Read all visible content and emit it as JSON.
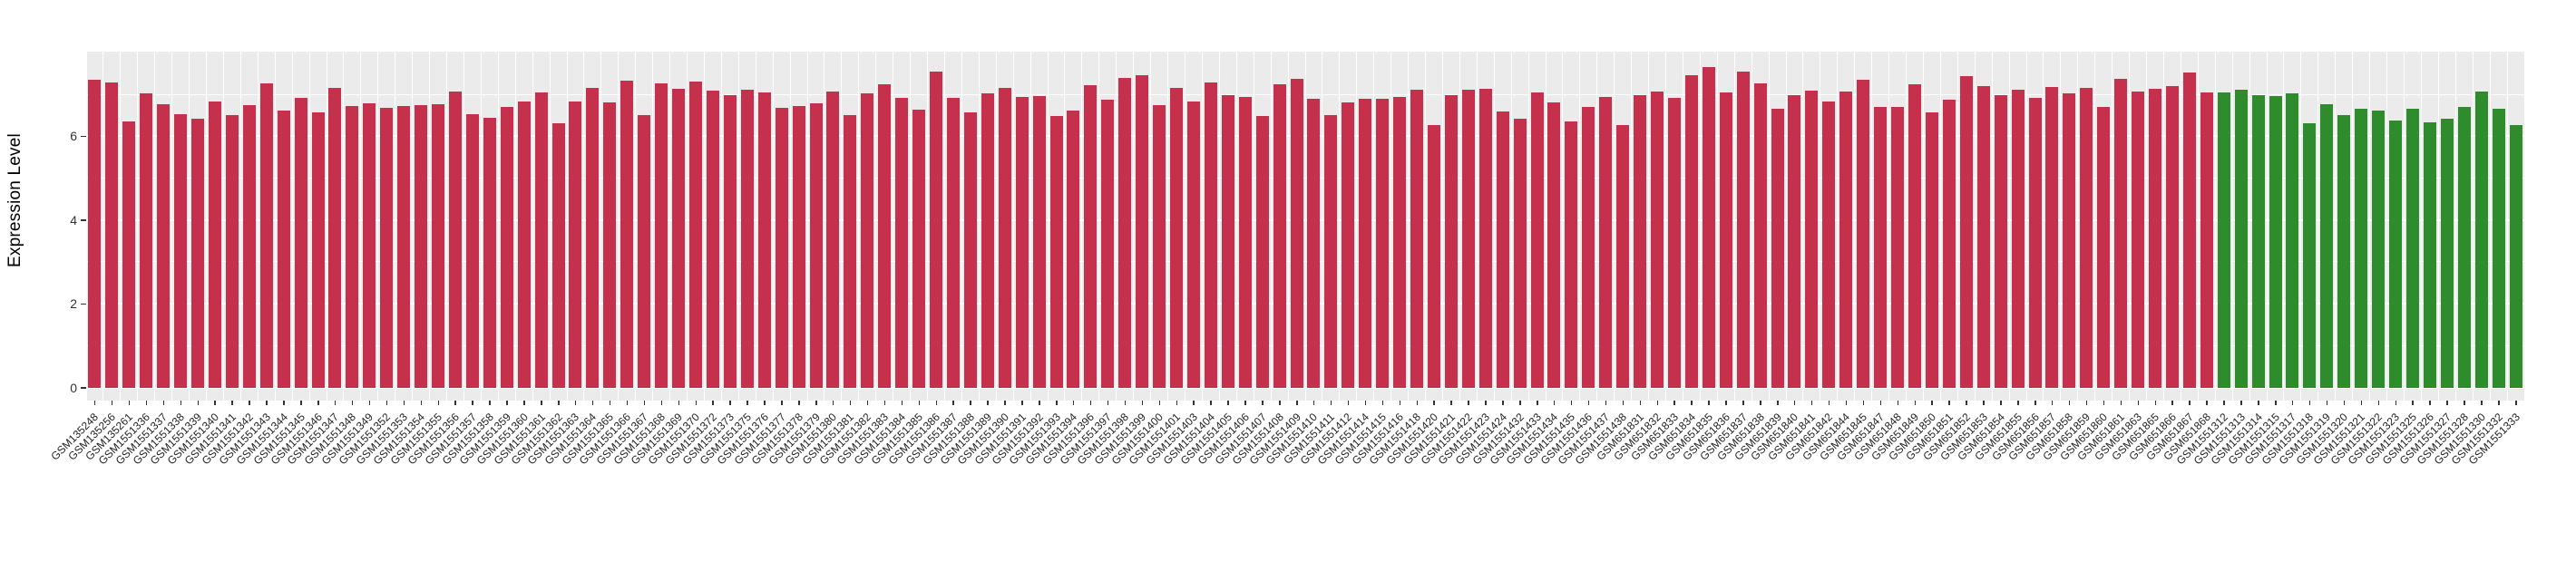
{
  "chart_data": {
    "type": "bar",
    "title": "",
    "xlabel": "",
    "ylabel": "Expression Level",
    "yticks": [
      0,
      2,
      4,
      6
    ],
    "ylim": [
      0,
      8.0
    ],
    "grid": "on",
    "legend": "none",
    "panel_background": "#EBEBEB",
    "gridline_color": "#FFFFFF",
    "group_colors": {
      "red": "#C5304D",
      "green": "#2E8C2D"
    },
    "green_start_index": 124,
    "categories": [
      "GSM135248",
      "GSM135256",
      "GSM135261",
      "GSM1551336",
      "GSM1551337",
      "GSM1551338",
      "GSM1551339",
      "GSM1551340",
      "GSM1551341",
      "GSM1551342",
      "GSM1551343",
      "GSM1551344",
      "GSM1551345",
      "GSM1551346",
      "GSM1551347",
      "GSM1551348",
      "GSM1551349",
      "GSM1551352",
      "GSM1551353",
      "GSM1551354",
      "GSM1551355",
      "GSM1551356",
      "GSM1551357",
      "GSM1551358",
      "GSM1551359",
      "GSM1551360",
      "GSM1551361",
      "GSM1551362",
      "GSM1551363",
      "GSM1551364",
      "GSM1551365",
      "GSM1551366",
      "GSM1551367",
      "GSM1551368",
      "GSM1551369",
      "GSM1551370",
      "GSM1551372",
      "GSM1551373",
      "GSM1551375",
      "GSM1551376",
      "GSM1551377",
      "GSM1551378",
      "GSM1551379",
      "GSM1551380",
      "GSM1551381",
      "GSM1551382",
      "GSM1551383",
      "GSM1551384",
      "GSM1551385",
      "GSM1551386",
      "GSM1551387",
      "GSM1551388",
      "GSM1551389",
      "GSM1551390",
      "GSM1551391",
      "GSM1551392",
      "GSM1551393",
      "GSM1551394",
      "GSM1551396",
      "GSM1551397",
      "GSM1551398",
      "GSM1551399",
      "GSM1551400",
      "GSM1551401",
      "GSM1551403",
      "GSM1551404",
      "GSM1551405",
      "GSM1551406",
      "GSM1551407",
      "GSM1551408",
      "GSM1551409",
      "GSM1551410",
      "GSM1551411",
      "GSM1551412",
      "GSM1551414",
      "GSM1551415",
      "GSM1551416",
      "GSM1551418",
      "GSM1551420",
      "GSM1551421",
      "GSM1551422",
      "GSM1551423",
      "GSM1551424",
      "GSM1551432",
      "GSM1551433",
      "GSM1551434",
      "GSM1551435",
      "GSM1551436",
      "GSM1551437",
      "GSM1551438",
      "GSM651831",
      "GSM651832",
      "GSM651833",
      "GSM651834",
      "GSM651835",
      "GSM651836",
      "GSM651837",
      "GSM651838",
      "GSM651839",
      "GSM651840",
      "GSM651841",
      "GSM651842",
      "GSM651844",
      "GSM651845",
      "GSM651847",
      "GSM651848",
      "GSM651849",
      "GSM651850",
      "GSM651851",
      "GSM651852",
      "GSM651853",
      "GSM651854",
      "GSM651855",
      "GSM651856",
      "GSM651857",
      "GSM651858",
      "GSM651859",
      "GSM651860",
      "GSM651861",
      "GSM651863",
      "GSM651865",
      "GSM651866",
      "GSM651867",
      "GSM651868",
      "GSM1551312",
      "GSM1551313",
      "GSM1551314",
      "GSM1551315",
      "GSM1551317",
      "GSM1551318",
      "GSM1551319",
      "GSM1551320",
      "GSM1551321",
      "GSM1551322",
      "GSM1551323",
      "GSM1551325",
      "GSM1551326",
      "GSM1551327",
      "GSM1551328",
      "GSM1551330",
      "GSM1551332",
      "GSM1551333"
    ],
    "values": [
      7.35,
      7.29,
      6.35,
      7.02,
      6.76,
      6.53,
      6.42,
      6.83,
      6.5,
      6.74,
      7.27,
      6.61,
      6.91,
      6.58,
      7.15,
      6.73,
      6.78,
      6.68,
      6.73,
      6.74,
      6.76,
      7.07,
      6.53,
      6.44,
      6.71,
      6.84,
      7.05,
      6.31,
      6.84,
      7.15,
      6.81,
      7.32,
      6.51,
      7.26,
      7.14,
      7.3,
      7.09,
      6.98,
      7.12,
      7.04,
      6.67,
      6.73,
      6.79,
      7.07,
      6.5,
      7.03,
      7.23,
      6.92,
      6.63,
      7.55,
      6.92,
      6.56,
      7.03,
      7.15,
      6.94,
      6.96,
      6.48,
      6.62,
      7.21,
      6.87,
      7.39,
      7.46,
      6.74,
      7.16,
      6.84,
      7.28,
      6.98,
      6.94,
      6.49,
      7.25,
      7.37,
      6.89,
      6.5,
      6.81,
      6.89,
      6.9,
      6.94,
      7.1,
      6.27,
      6.98,
      7.12,
      7.14,
      6.59,
      6.42,
      7.05,
      6.8,
      6.35,
      6.69,
      6.94,
      6.26,
      6.98,
      7.07,
      6.92,
      7.45,
      7.65,
      7.05,
      7.54,
      7.26,
      6.65,
      6.99,
      7.08,
      6.84,
      7.07,
      7.34,
      6.71,
      6.69,
      7.25,
      6.58,
      6.87,
      7.44,
      7.2,
      6.99,
      7.12,
      6.91,
      7.17,
      7.03,
      7.16,
      6.7,
      7.36,
      7.07,
      7.14,
      7.2,
      7.52,
      7.05,
      7.04,
      7.12,
      6.98,
      6.96,
      7.03,
      6.32,
      6.76,
      6.5,
      6.66,
      6.61,
      6.37,
      6.65,
      6.34,
      6.42,
      6.7,
      7.07,
      6.66,
      6.27
    ]
  }
}
